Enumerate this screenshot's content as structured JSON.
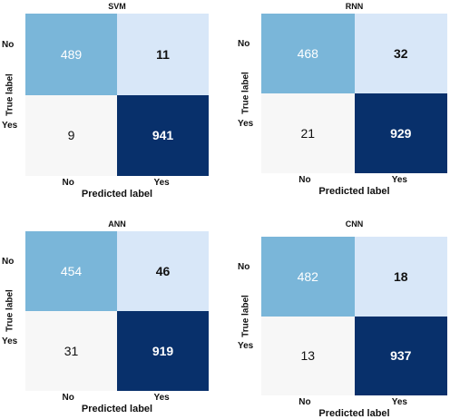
{
  "chart_data": [
    {
      "type": "heatmap",
      "title": "SVM",
      "xlabel": "Predicted label",
      "ylabel": "True label",
      "x_ticks": [
        "No",
        "Yes"
      ],
      "y_ticks": [
        "No",
        "Yes"
      ],
      "values": [
        [
          489,
          11
        ],
        [
          9,
          941
        ]
      ]
    },
    {
      "type": "heatmap",
      "title": "RNN",
      "xlabel": "Predicted label",
      "ylabel": "True label",
      "x_ticks": [
        "No",
        "Yes"
      ],
      "y_ticks": [
        "No",
        "Yes"
      ],
      "values": [
        [
          468,
          32
        ],
        [
          21,
          929
        ]
      ]
    },
    {
      "type": "heatmap",
      "title": "ANN",
      "xlabel": "Predicted label",
      "ylabel": "True label",
      "x_ticks": [
        "No",
        "Yes"
      ],
      "y_ticks": [
        "No",
        "Yes"
      ],
      "values": [
        [
          454,
          46
        ],
        [
          31,
          919
        ]
      ]
    },
    {
      "type": "heatmap",
      "title": "CNN",
      "xlabel": "Predicted label",
      "ylabel": "True label",
      "x_ticks": [
        "No",
        "Yes"
      ],
      "y_ticks": [
        "No",
        "Yes"
      ],
      "values": [
        [
          482,
          18
        ],
        [
          13,
          937
        ]
      ]
    }
  ],
  "colors": {
    "true_positive_no": "#7ab6d9",
    "false_positive": "#d8e7f8",
    "false_negative": "#f7f7f7",
    "true_positive_yes": "#08306b",
    "light_text": "#ffffff",
    "dark_text": "#111111"
  }
}
